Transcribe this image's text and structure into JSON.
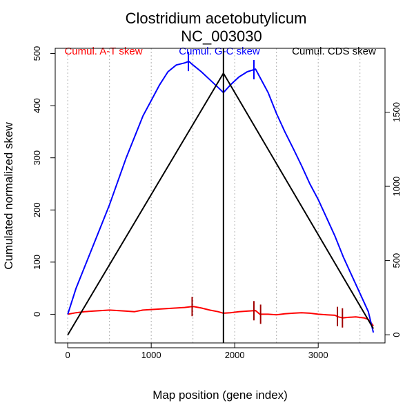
{
  "chart_data": {
    "type": "line",
    "title": "Clostridium acetobutylicum",
    "subtitle": "NC_003030",
    "xlabel": "Map position (gene index)",
    "ylabel": "Cumulated normalized skew",
    "xlim": [
      -150,
      3800
    ],
    "ylim": [
      -55,
      510
    ],
    "y2lim": [
      -55,
      1930
    ],
    "x_ticks": [
      0,
      1000,
      2000,
      3000
    ],
    "y_ticks": [
      0,
      100,
      200,
      300,
      400,
      500
    ],
    "y2_ticks": [
      0,
      500,
      1000,
      1500
    ],
    "x_grid": [
      0,
      500,
      1000,
      1500,
      2000,
      2500,
      3000,
      3500
    ],
    "grid": "vertical dotted",
    "legend_placement": "top",
    "legend": [
      {
        "label": "Cumul. A-T skew",
        "color": "#ff0000"
      },
      {
        "label": "Cumul. G-C skew",
        "color": "#0000ff"
      },
      {
        "label": "Cumul. CDS skew",
        "color": "#000000"
      }
    ],
    "series": [
      {
        "name": "Cumul. A-T skew",
        "color": "#ff0000",
        "axis": "left",
        "x": [
          0,
          100,
          200,
          300,
          400,
          500,
          600,
          700,
          800,
          900,
          1000,
          1100,
          1200,
          1300,
          1400,
          1500,
          1600,
          1700,
          1800,
          1865,
          1950,
          2050,
          2150,
          2250,
          2300,
          2400,
          2500,
          2600,
          2700,
          2800,
          2900,
          3000,
          3100,
          3200,
          3240,
          3290,
          3350,
          3450,
          3550,
          3600,
          3660
        ],
        "values": [
          0,
          3,
          5,
          6,
          7,
          8,
          7,
          6,
          5,
          8,
          9,
          10,
          11,
          12,
          13,
          15,
          12,
          8,
          5,
          2,
          3,
          5,
          6,
          7,
          0,
          0,
          -1,
          1,
          2,
          3,
          2,
          0,
          -1,
          -2,
          -5,
          -7,
          -6,
          -5,
          -7,
          -10,
          -22
        ]
      },
      {
        "name": "Cumul. G-C skew",
        "color": "#0000ff",
        "axis": "left",
        "x": [
          0,
          100,
          200,
          300,
          400,
          500,
          600,
          700,
          800,
          900,
          1000,
          1100,
          1200,
          1300,
          1400,
          1450,
          1500,
          1600,
          1700,
          1800,
          1865,
          1950,
          2050,
          2150,
          2250,
          2300,
          2400,
          2500,
          2600,
          2700,
          2800,
          2900,
          3000,
          3100,
          3200,
          3300,
          3400,
          3500,
          3600,
          3660
        ],
        "values": [
          0,
          50,
          90,
          130,
          170,
          210,
          255,
          300,
          340,
          380,
          410,
          440,
          465,
          478,
          482,
          485,
          478,
          465,
          450,
          435,
          425,
          440,
          455,
          465,
          470,
          455,
          425,
          385,
          350,
          318,
          285,
          250,
          220,
          185,
          150,
          110,
          75,
          40,
          5,
          -35
        ]
      },
      {
        "name": "Cumul. CDS skew",
        "color": "#000000",
        "axis": "right",
        "x": [
          0,
          1865,
          3660
        ],
        "values": [
          -1,
          1762,
          41
        ]
      }
    ],
    "annotations": {
      "origin_x": 1865,
      "at_ticks_x": [
        1490,
        2230,
        2310,
        3230,
        3290
      ],
      "gc_ticks_x": [
        1445,
        2230
      ],
      "tick_color": "#a00000",
      "vertical_line_color": "#000000"
    }
  }
}
